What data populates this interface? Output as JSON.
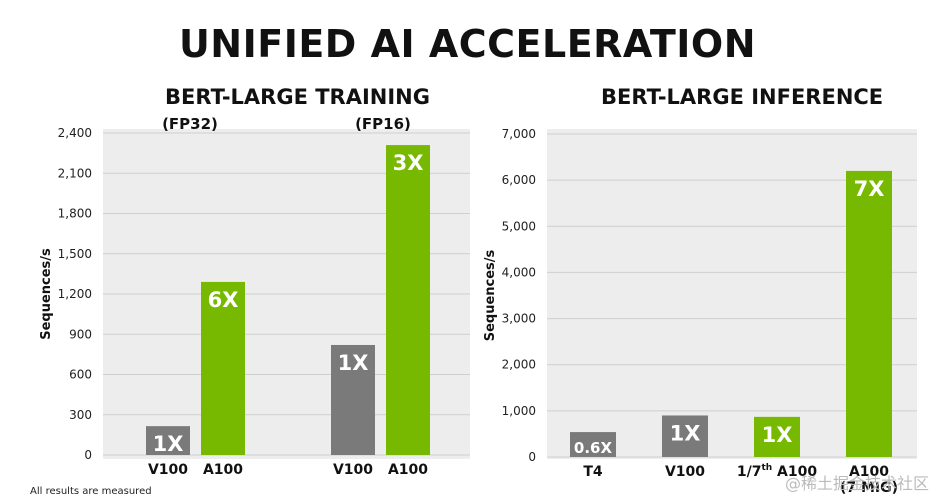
{
  "title": "UNIFIED AI ACCELERATION",
  "footnote": "All results are measured",
  "watermark": "@稀土掘金技术社区",
  "colors": {
    "gray": "#7a7a7a",
    "green": "#76b900",
    "panel": "#ededed",
    "grid": "#cfcfcf"
  },
  "chart_data": [
    {
      "type": "bar",
      "title": "BERT-LARGE TRAINING",
      "ylabel": "Sequences/s",
      "ylim": [
        0,
        2400
      ],
      "yticks": [
        "0",
        "300",
        "600",
        "900",
        "1,200",
        "1,500",
        "1,800",
        "2,100",
        "2,400"
      ],
      "groups": [
        "(FP32)",
        "(FP16)"
      ],
      "categories": [
        "V100",
        "A100",
        "V100",
        "A100"
      ],
      "values": [
        215,
        1290,
        820,
        2310
      ],
      "bar_labels": [
        "1X",
        "6X",
        "1X",
        "3X"
      ],
      "bar_colors": [
        "gray",
        "green",
        "gray",
        "green"
      ]
    },
    {
      "type": "bar",
      "title": "BERT-LARGE INFERENCE",
      "ylabel": "Sequences/s",
      "ylim": [
        0,
        7000
      ],
      "yticks": [
        "0",
        "1,000",
        "2,000",
        "3,000",
        "4,000",
        "5,000",
        "6,000",
        "7,000"
      ],
      "categories": [
        "T4",
        "V100",
        "1/7th A100",
        "A100 (7 MIG)"
      ],
      "category_parts": [
        [
          "T4",
          "",
          ""
        ],
        [
          "V100",
          "",
          ""
        ],
        [
          "1/7",
          "th",
          " A100"
        ],
        [
          "A100",
          "",
          ""
        ]
      ],
      "category_second_line": [
        "",
        "",
        "",
        "(7 MIG)"
      ],
      "values": [
        540,
        900,
        870,
        6200
      ],
      "bar_labels": [
        "0.6X",
        "1X",
        "1X",
        "7X"
      ],
      "bar_colors": [
        "gray",
        "gray",
        "green",
        "green"
      ]
    }
  ]
}
